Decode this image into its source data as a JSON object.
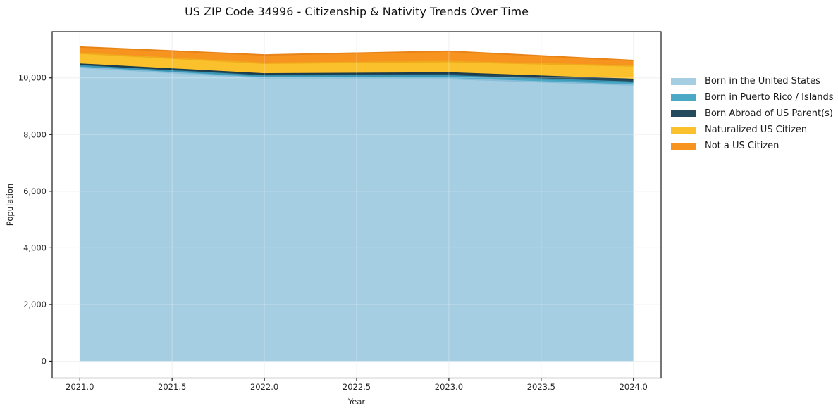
{
  "chart_data": {
    "type": "area",
    "stacked": true,
    "title": "US ZIP Code 34996 - Citizenship & Nativity Trends Over Time",
    "xlabel": "Year",
    "ylabel": "Population",
    "x": [
      2021,
      2022,
      2023,
      2024
    ],
    "series": [
      {
        "name": "Born in the United States",
        "color": "#a6cee3",
        "edge_color": "#8bbfd9",
        "values": [
          10370,
          9990,
          9970,
          9745
        ]
      },
      {
        "name": "Born in Puerto Rico / Islands",
        "color": "#4ba9c6",
        "edge_color": "#3b95b4",
        "values": [
          55,
          75,
          100,
          100
        ]
      },
      {
        "name": "Born Abroad of US Parent(s)",
        "color": "#234a5d",
        "edge_color": "#1b3c4c",
        "values": [
          60,
          75,
          105,
          100
        ]
      },
      {
        "name": "Naturalized US Citizen",
        "color": "#fbc12d",
        "edge_color": "#efab1b",
        "values": [
          385,
          375,
          400,
          475
        ]
      },
      {
        "name": "Not a US Citizen",
        "color": "#f79420",
        "edge_color": "#e88317",
        "values": [
          220,
          295,
          365,
          195
        ]
      }
    ],
    "totals": [
      11090,
      10810,
      10940,
      10615
    ],
    "xlim": [
      2020.85,
      2024.15
    ],
    "ylim": [
      -596,
      11632
    ],
    "x_ticks": [
      2021.0,
      2021.5,
      2022.0,
      2022.5,
      2023.0,
      2023.5,
      2024.0
    ],
    "x_tick_labels": [
      "2021.0",
      "2021.5",
      "2022.0",
      "2022.5",
      "2023.0",
      "2023.5",
      "2024.0"
    ],
    "y_ticks": [
      0,
      2000,
      4000,
      6000,
      8000,
      10000
    ],
    "y_tick_labels": [
      "0",
      "2,000",
      "4,000",
      "6,000",
      "8,000",
      "10,000"
    ],
    "grid": true,
    "grid_color": "#ebebeb",
    "spine_color": "#1a1a1a",
    "tick_label_color": "#262626",
    "legend_position": "right-outside"
  }
}
